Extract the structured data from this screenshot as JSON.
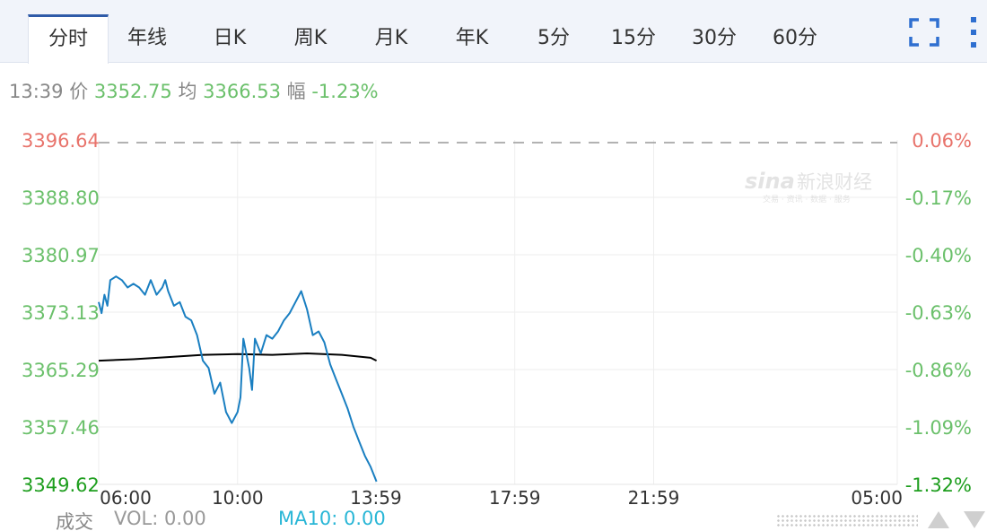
{
  "tabs": [
    {
      "label": "分时",
      "active": true
    },
    {
      "label": "年线"
    },
    {
      "label": "日K"
    },
    {
      "label": "周K"
    },
    {
      "label": "月K"
    },
    {
      "label": "年K"
    },
    {
      "label": "5分"
    },
    {
      "label": "15分"
    },
    {
      "label": "30分"
    },
    {
      "label": "60分"
    }
  ],
  "info": {
    "time": "13:39",
    "price_label": "价",
    "price": "3352.75",
    "avg_label": "均",
    "avg": "3366.53",
    "change_label": "幅",
    "change": "-1.23%"
  },
  "watermark": {
    "brand": "sina",
    "name": "新浪财经",
    "sub": "交易 · 资讯 · 数据 · 服务"
  },
  "footer": {
    "volume_label": "成交",
    "vol": "VOL: 0.00",
    "ma10": "MA10: 0.00"
  },
  "colors": {
    "up": "#e8736b",
    "down": "#6bc06b",
    "down_strong": "#1e9e1e",
    "price_line": "#1a7fc1",
    "avg_line": "#000000",
    "ma10": "#29b6d6"
  },
  "chart_data": {
    "type": "line",
    "y_ticks": [
      "3396.64",
      "3388.80",
      "3380.97",
      "3373.13",
      "3365.29",
      "3357.46",
      "3349.62"
    ],
    "pct_ticks": [
      "0.06%",
      "-0.17%",
      "-0.40%",
      "-0.63%",
      "-0.86%",
      "-1.09%",
      "-1.32%"
    ],
    "ylim": [
      3349.62,
      3396.64
    ],
    "x_ticks": [
      "06:00",
      "10:00",
      "13:59",
      "17:59",
      "21:59",
      "05:00"
    ],
    "x_tick_minutes": [
      0,
      240,
      479,
      719,
      959,
      1380
    ],
    "xlim_minutes": [
      0,
      1380
    ],
    "reference_price": 3394.6,
    "series": [
      {
        "role": "price",
        "x_minutes": [
          0,
          5,
          10,
          15,
          20,
          30,
          40,
          50,
          60,
          70,
          80,
          90,
          100,
          110,
          115,
          120,
          130,
          140,
          150,
          160,
          170,
          180,
          190,
          200,
          210,
          220,
          230,
          240,
          245,
          250,
          255,
          260,
          265,
          270,
          280,
          290,
          300,
          310,
          320,
          330,
          340,
          350,
          360,
          370,
          380,
          390,
          400,
          410,
          420,
          430,
          440,
          445,
          450,
          460,
          470,
          480
        ],
        "values": [
          3374.5,
          3373.0,
          3375.5,
          3374.0,
          3377.5,
          3378.0,
          3377.5,
          3376.5,
          3377.0,
          3376.5,
          3375.5,
          3377.5,
          3375.5,
          3376.5,
          3377.5,
          3376.0,
          3374.0,
          3374.5,
          3372.5,
          3372.0,
          3370.0,
          3366.5,
          3365.5,
          3362.0,
          3363.5,
          3359.5,
          3358.0,
          3359.5,
          3361.5,
          3369.5,
          3367.5,
          3365.5,
          3362.5,
          3369.5,
          3367.5,
          3370.0,
          3369.5,
          3370.5,
          3372.0,
          3373.0,
          3374.5,
          3376.0,
          3373.5,
          3370.0,
          3370.5,
          3369.0,
          3366.0,
          3364.0,
          3362.0,
          3360.0,
          3357.5,
          3356.5,
          3355.5,
          3353.5,
          3352.0,
          3350.0
        ]
      },
      {
        "role": "average",
        "x_minutes": [
          0,
          60,
          120,
          180,
          240,
          300,
          360,
          420,
          470,
          480
        ],
        "values": [
          3366.5,
          3366.7,
          3367.0,
          3367.3,
          3367.4,
          3367.3,
          3367.5,
          3367.3,
          3366.9,
          3366.5
        ]
      }
    ],
    "grid": true
  }
}
